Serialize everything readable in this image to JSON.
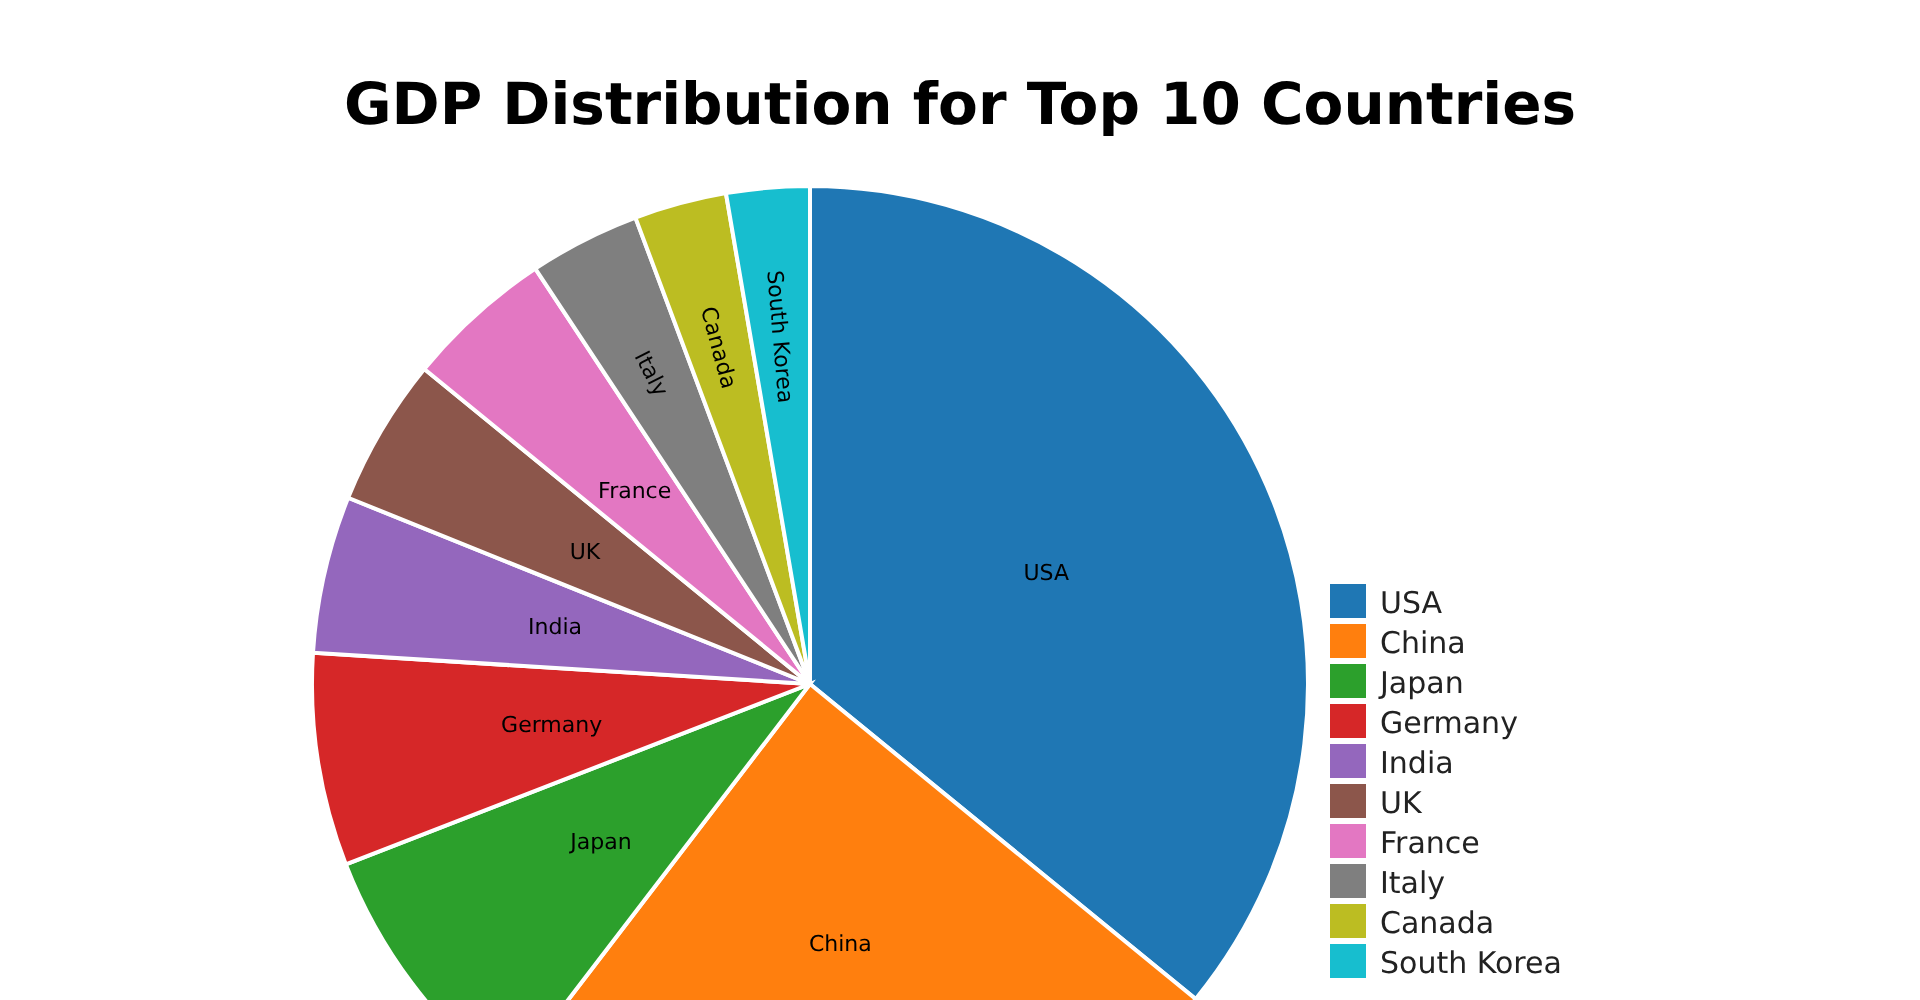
{
  "chart_data": {
    "type": "pie",
    "title": "GDP Distribution for Top 10 Countries",
    "categories": [
      "USA",
      "China",
      "Japan",
      "Germany",
      "India",
      "UK",
      "France",
      "Italy",
      "Canada",
      "South Korea"
    ],
    "values": [
      35.9,
      24.5,
      8.7,
      6.9,
      5.1,
      4.8,
      4.8,
      3.6,
      3.0,
      2.7
    ],
    "colors": [
      "#1f77b4",
      "#ff7f0e",
      "#2ca02c",
      "#d62728",
      "#9467bd",
      "#8c564b",
      "#e377c2",
      "#7f7f7f",
      "#bcbd22",
      "#17becf"
    ],
    "legend": "right"
  }
}
